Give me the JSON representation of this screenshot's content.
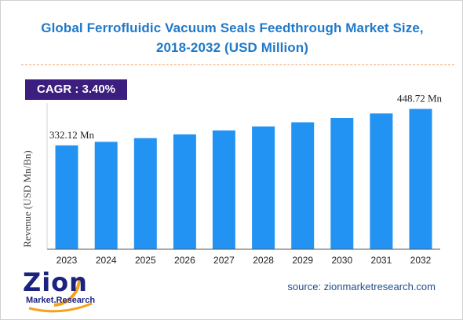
{
  "chart_data": {
    "type": "bar",
    "title": "Global Ferrofluidic Vacuum Seals Feedthrough Market Size,",
    "subtitle": "2018-2032 (USD Million)",
    "ylabel": "Revenue (USD Mn/Bn)",
    "xlabel": "",
    "categories": [
      "2023",
      "2024",
      "2025",
      "2026",
      "2027",
      "2028",
      "2029",
      "2030",
      "2031",
      "2032"
    ],
    "values": [
      332.12,
      343.4,
      355.1,
      367.2,
      379.7,
      392.6,
      405.9,
      419.7,
      434.0,
      448.72
    ],
    "data_labels": {
      "first": "332.12 Mn",
      "last": "448.72 Mn"
    },
    "ylim": [
      0,
      460
    ],
    "bar_color": "#2393f3",
    "grid": false,
    "legend": "none"
  },
  "cagr": {
    "text": "CAGR :  3.40%",
    "color": "#3c1e7e"
  },
  "brand": {
    "logo_main": "Zion",
    "logo_sub": "Market.Research",
    "color": "#1a237e"
  },
  "source": "source: zionmarketresearch.com"
}
